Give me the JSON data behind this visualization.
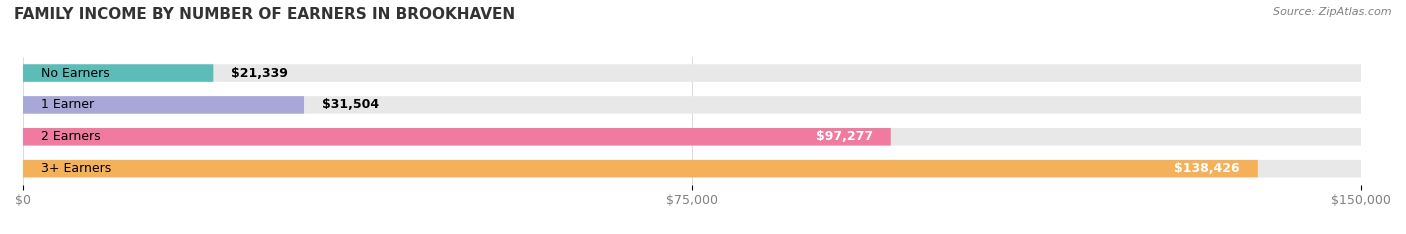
{
  "title": "FAMILY INCOME BY NUMBER OF EARNERS IN BROOKHAVEN",
  "source": "Source: ZipAtlas.com",
  "categories": [
    "No Earners",
    "1 Earner",
    "2 Earners",
    "3+ Earners"
  ],
  "values": [
    21339,
    31504,
    97277,
    138426
  ],
  "value_labels": [
    "$21,339",
    "$31,504",
    "$97,277",
    "$138,426"
  ],
  "bar_colors": [
    "#5bbcb8",
    "#a8a8d8",
    "#f07aa0",
    "#f5b05a"
  ],
  "bg_bar_color": "#e8e8e8",
  "xlim": [
    0,
    150000
  ],
  "xticks": [
    0,
    75000,
    150000
  ],
  "xtick_labels": [
    "$0",
    "$75,000",
    "$150,000"
  ],
  "title_fontsize": 11,
  "source_fontsize": 8,
  "label_fontsize": 9,
  "value_fontsize": 9,
  "bar_height": 0.55,
  "background_color": "#ffffff"
}
